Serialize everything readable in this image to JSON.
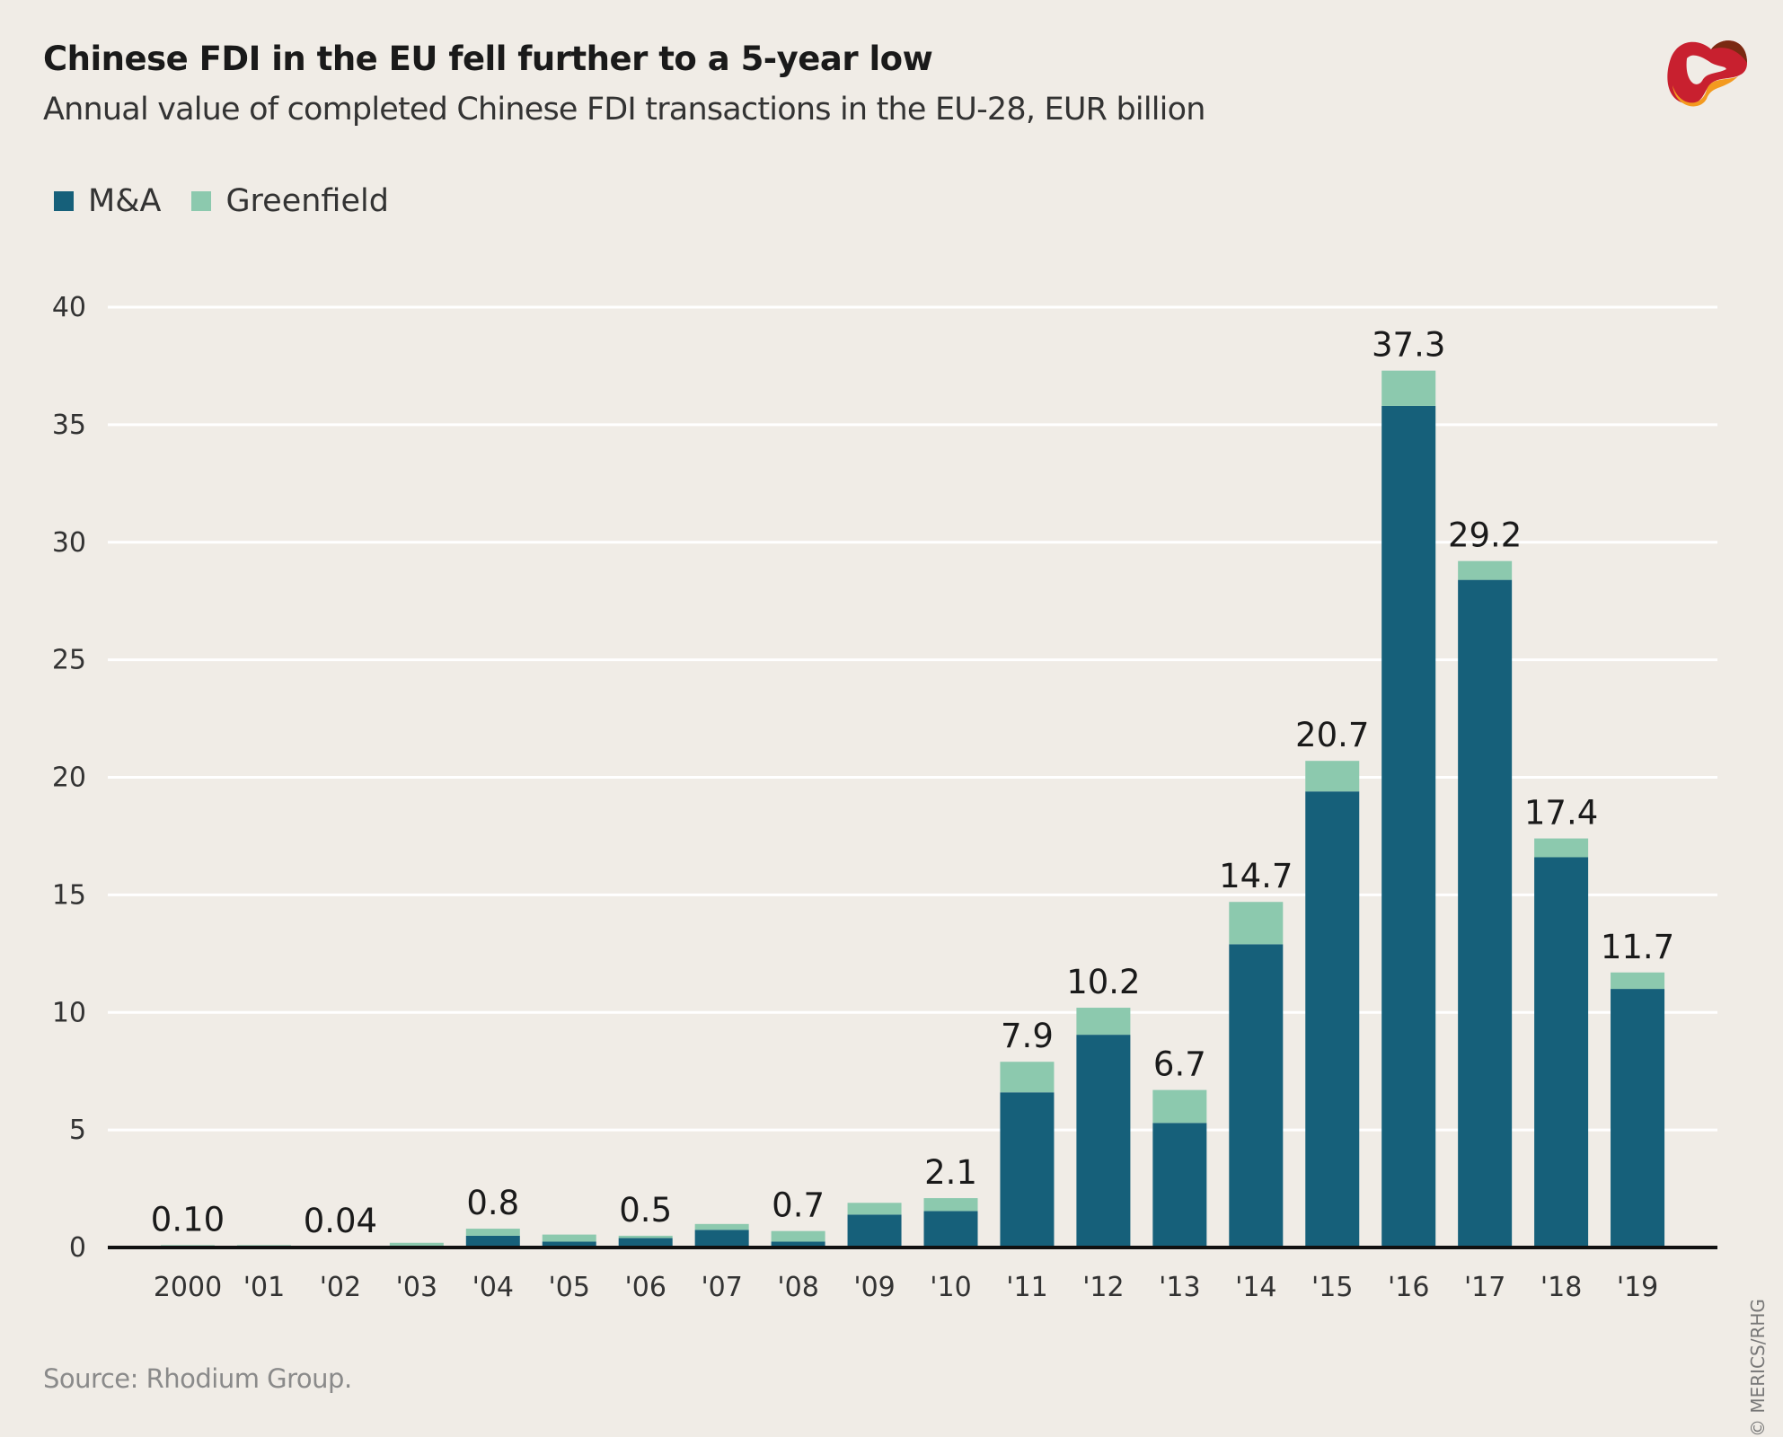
{
  "chart_data": {
    "type": "bar",
    "stacked": true,
    "title": "Chinese FDI in the EU fell further to a 5-year low",
    "subtitle": "Annual value of completed Chinese FDI transactions in the EU-28, EUR billion",
    "categories": [
      "2000",
      "'01",
      "'02",
      "'03",
      "'04",
      "'05",
      "'06",
      "'07",
      "'08",
      "'09",
      "'10",
      "'11",
      "'12",
      "'13",
      "'14",
      "'15",
      "'16",
      "'17",
      "'18",
      "'19"
    ],
    "series": [
      {
        "name": "M&A",
        "color": "#16607a",
        "values": [
          0.02,
          0.07,
          0.02,
          0.05,
          0.5,
          0.25,
          0.4,
          0.75,
          0.25,
          1.4,
          1.55,
          6.6,
          9.05,
          5.3,
          12.9,
          19.4,
          35.8,
          28.4,
          16.6,
          11.0
        ]
      },
      {
        "name": "Greenfield",
        "color": "#8cc9ae",
        "values": [
          0.08,
          0.03,
          0.02,
          0.15,
          0.3,
          0.3,
          0.1,
          0.25,
          0.45,
          0.5,
          0.55,
          1.3,
          1.15,
          1.4,
          1.8,
          1.3,
          1.5,
          0.8,
          0.8,
          0.7
        ]
      }
    ],
    "data_labels": [
      "0.10",
      "",
      "0.04",
      "",
      "0.8",
      "",
      "0.5",
      "",
      "0.7",
      "",
      "2.1",
      "7.9",
      "10.2",
      "6.7",
      "14.7",
      "20.7",
      "37.3",
      "29.2",
      "17.4",
      "11.7"
    ],
    "yticks": [
      "0",
      "5",
      "10",
      "15",
      "20",
      "25",
      "30",
      "35",
      "40"
    ],
    "ylim": [
      0,
      40
    ],
    "grid": true,
    "legend": "top-left"
  },
  "source": "Source: Rhodium Group.",
  "copyright": "© MERICS/RHG",
  "logo": "MERICS"
}
